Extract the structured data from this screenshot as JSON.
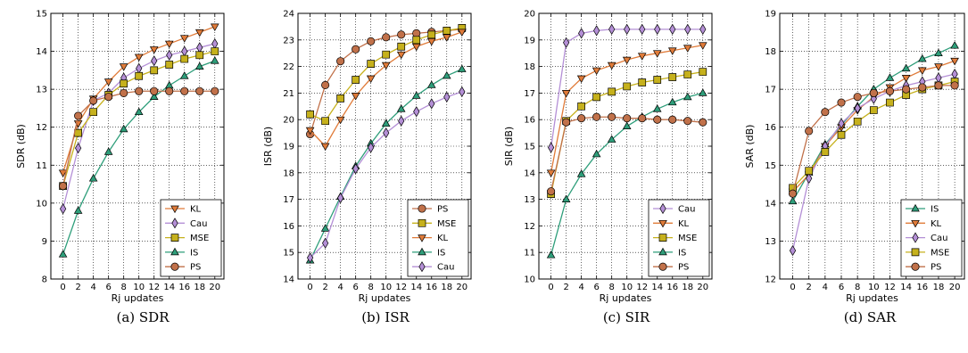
{
  "chart_data": [
    {
      "type": "line",
      "caption": "(a) SDR",
      "xlabel": "Rj updates",
      "ylabel": "SDR (dB)",
      "x": [
        0,
        2,
        4,
        6,
        8,
        10,
        12,
        14,
        16,
        18,
        20
      ],
      "xticks": [
        0,
        2,
        4,
        6,
        8,
        10,
        12,
        14,
        16,
        18,
        20
      ],
      "ylim": [
        8,
        15
      ],
      "yticks": [
        8,
        9,
        10,
        11,
        12,
        13,
        14,
        15
      ],
      "grid": true,
      "legend_position": "bottom-right",
      "legend_order": [
        "KL",
        "Cau",
        "MSE",
        "IS",
        "PS"
      ],
      "series": [
        {
          "name": "KL",
          "values": [
            10.8,
            12.1,
            12.75,
            13.2,
            13.6,
            13.85,
            14.05,
            14.2,
            14.35,
            14.5,
            14.65
          ]
        },
        {
          "name": "Cau",
          "values": [
            9.85,
            11.45,
            12.7,
            12.9,
            13.3,
            13.55,
            13.75,
            13.9,
            14.0,
            14.1,
            14.2
          ]
        },
        {
          "name": "MSE",
          "values": [
            10.45,
            11.85,
            12.4,
            12.85,
            13.15,
            13.35,
            13.5,
            13.65,
            13.8,
            13.9,
            14.0
          ]
        },
        {
          "name": "IS",
          "values": [
            8.65,
            9.8,
            10.65,
            11.35,
            11.95,
            12.4,
            12.8,
            13.1,
            13.35,
            13.6,
            13.75
          ]
        },
        {
          "name": "PS",
          "values": [
            10.45,
            12.3,
            12.7,
            12.8,
            12.9,
            12.95,
            12.95,
            12.95,
            12.95,
            12.95,
            12.95
          ]
        }
      ]
    },
    {
      "type": "line",
      "caption": "(b) ISR",
      "xlabel": "Rj updates",
      "ylabel": "ISR (dB)",
      "x": [
        0,
        2,
        4,
        6,
        8,
        10,
        12,
        14,
        16,
        18,
        20
      ],
      "xticks": [
        0,
        2,
        4,
        6,
        8,
        10,
        12,
        14,
        16,
        18,
        20
      ],
      "ylim": [
        14,
        24
      ],
      "yticks": [
        14,
        15,
        16,
        17,
        18,
        19,
        20,
        21,
        22,
        23,
        24
      ],
      "grid": true,
      "legend_position": "bottom-right",
      "legend_order": [
        "PS",
        "MSE",
        "KL",
        "IS",
        "Cau"
      ],
      "series": [
        {
          "name": "PS",
          "values": [
            19.45,
            21.3,
            22.2,
            22.65,
            22.95,
            23.1,
            23.2,
            23.25,
            23.3,
            23.35,
            23.4
          ]
        },
        {
          "name": "MSE",
          "values": [
            20.2,
            19.95,
            20.8,
            21.5,
            22.1,
            22.45,
            22.75,
            23.0,
            23.2,
            23.35,
            23.45
          ]
        },
        {
          "name": "KL",
          "values": [
            19.6,
            19.0,
            20.0,
            20.9,
            21.55,
            22.05,
            22.45,
            22.75,
            22.95,
            23.1,
            23.3
          ]
        },
        {
          "name": "IS",
          "values": [
            14.7,
            15.9,
            17.1,
            18.25,
            19.1,
            19.85,
            20.4,
            20.9,
            21.3,
            21.65,
            21.9
          ]
        },
        {
          "name": "Cau",
          "values": [
            14.8,
            15.35,
            17.05,
            18.15,
            18.95,
            19.5,
            19.95,
            20.3,
            20.6,
            20.85,
            21.05
          ]
        }
      ]
    },
    {
      "type": "line",
      "caption": "(c) SIR",
      "xlabel": "Rj updates",
      "ylabel": "SIR (dB)",
      "x": [
        0,
        2,
        4,
        6,
        8,
        10,
        12,
        14,
        16,
        18,
        20
      ],
      "xticks": [
        0,
        2,
        4,
        6,
        8,
        10,
        12,
        14,
        16,
        18,
        20
      ],
      "ylim": [
        10,
        20
      ],
      "yticks": [
        10,
        11,
        12,
        13,
        14,
        15,
        16,
        17,
        18,
        19,
        20
      ],
      "grid": true,
      "legend_position": "bottom-right",
      "legend_order": [
        "Cau",
        "KL",
        "MSE",
        "IS",
        "PS"
      ],
      "series": [
        {
          "name": "Cau",
          "values": [
            14.95,
            18.9,
            19.25,
            19.35,
            19.4,
            19.4,
            19.4,
            19.4,
            19.4,
            19.4,
            19.4
          ]
        },
        {
          "name": "KL",
          "values": [
            14.0,
            17.0,
            17.55,
            17.85,
            18.05,
            18.25,
            18.4,
            18.5,
            18.6,
            18.7,
            18.8
          ]
        },
        {
          "name": "MSE",
          "values": [
            13.2,
            15.95,
            16.5,
            16.85,
            17.05,
            17.25,
            17.4,
            17.5,
            17.6,
            17.7,
            17.8
          ]
        },
        {
          "name": "IS",
          "values": [
            10.9,
            13.0,
            13.95,
            14.7,
            15.25,
            15.75,
            16.1,
            16.4,
            16.65,
            16.85,
            17.0
          ]
        },
        {
          "name": "PS",
          "values": [
            13.3,
            15.9,
            16.05,
            16.1,
            16.1,
            16.05,
            16.05,
            16.0,
            16.0,
            15.95,
            15.9
          ]
        }
      ]
    },
    {
      "type": "line",
      "caption": "(d) SAR",
      "xlabel": "Rj updates",
      "ylabel": "SAR (dB)",
      "x": [
        0,
        2,
        4,
        6,
        8,
        10,
        12,
        14,
        16,
        18,
        20
      ],
      "xticks": [
        0,
        2,
        4,
        6,
        8,
        10,
        12,
        14,
        16,
        18,
        20
      ],
      "ylim": [
        12,
        19
      ],
      "yticks": [
        12,
        13,
        14,
        15,
        16,
        17,
        18,
        19
      ],
      "grid": true,
      "legend_position": "bottom-right",
      "legend_order": [
        "IS",
        "KL",
        "Cau",
        "MSE",
        "PS"
      ],
      "series": [
        {
          "name": "IS",
          "values": [
            14.05,
            14.8,
            15.55,
            16.05,
            16.55,
            17.0,
            17.3,
            17.55,
            17.8,
            17.95,
            18.15
          ]
        },
        {
          "name": "KL",
          "values": [
            14.3,
            14.75,
            15.5,
            16.0,
            16.45,
            16.8,
            17.05,
            17.3,
            17.5,
            17.6,
            17.75
          ]
        },
        {
          "name": "Cau",
          "values": [
            12.75,
            14.65,
            15.5,
            16.1,
            16.5,
            16.75,
            16.95,
            17.1,
            17.2,
            17.3,
            17.4
          ]
        },
        {
          "name": "MSE",
          "values": [
            14.4,
            14.85,
            15.35,
            15.8,
            16.15,
            16.45,
            16.65,
            16.85,
            17.0,
            17.1,
            17.2
          ]
        },
        {
          "name": "PS",
          "values": [
            14.25,
            15.9,
            16.4,
            16.65,
            16.8,
            16.9,
            16.95,
            17.0,
            17.05,
            17.1,
            17.1
          ]
        }
      ]
    }
  ],
  "style": {
    "colors": {
      "KL": "#e07b39",
      "Cau": "#b48fd6",
      "MSE": "#c6b11c",
      "IS": "#2e9e7a",
      "PS": "#c1714a"
    },
    "markers": {
      "KL": "triangle-down-icon",
      "Cau": "diamond-icon",
      "MSE": "square-icon",
      "IS": "triangle-up-icon",
      "PS": "circle-icon"
    }
  }
}
